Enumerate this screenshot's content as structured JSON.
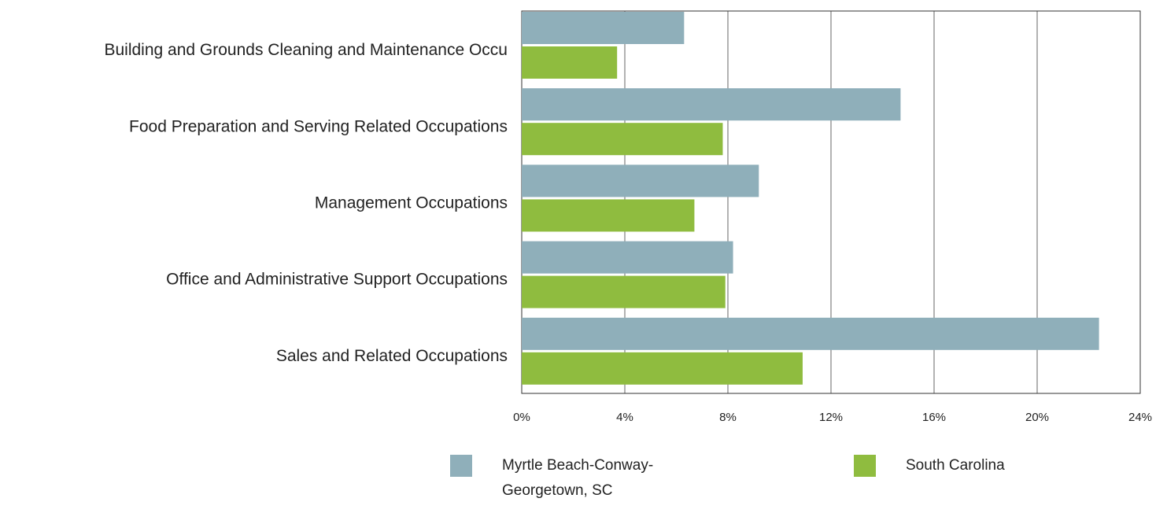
{
  "chart_data": {
    "type": "bar",
    "orientation": "horizontal",
    "categories": [
      "Building and Grounds Cleaning and Maintenance Occu",
      "Food Preparation and Serving Related Occupations",
      "Management Occupations",
      "Office and Administrative Support Occupations",
      "Sales and Related Occupations"
    ],
    "series": [
      {
        "name": "Myrtle Beach-Conway-Georgetown, SC",
        "color": "#8fafba",
        "values": [
          6.3,
          14.7,
          9.2,
          8.2,
          22.4
        ]
      },
      {
        "name": "South Carolina",
        "color": "#8fbc3f",
        "values": [
          3.7,
          7.8,
          6.7,
          7.9,
          10.9
        ]
      }
    ],
    "xlim": [
      0,
      24
    ],
    "xticks": [
      {
        "value": 0,
        "label": "0%"
      },
      {
        "value": 4,
        "label": "4%"
      },
      {
        "value": 8,
        "label": "8%"
      },
      {
        "value": 12,
        "label": "12%"
      },
      {
        "value": 16,
        "label": "16%"
      },
      {
        "value": 20,
        "label": "20%"
      },
      {
        "value": 24,
        "label": "24%"
      }
    ],
    "grid": true,
    "legend": "bottom"
  }
}
